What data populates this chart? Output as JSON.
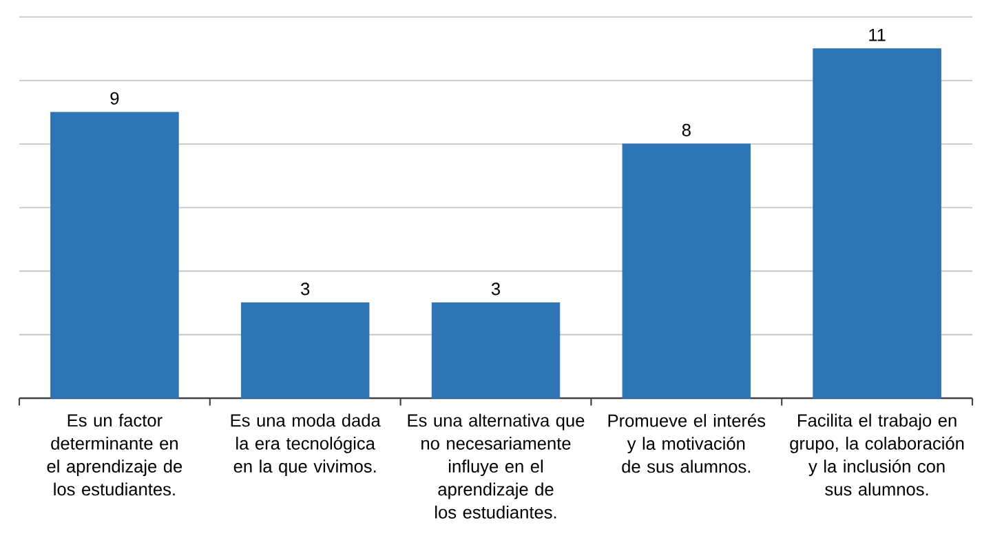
{
  "chart_data": {
    "type": "bar",
    "categories": [
      "Es un factor determinante en el aprendizaje de los estudiantes.",
      "Es una moda dada la era tecnológica en la que vivimos.",
      "Es una alternativa que no necesariamente influye en el aprendizaje de los estudiantes.",
      "Promueve el interés y la motivación de sus alumnos.",
      "Facilita el trabajo en grupo, la colaboración y la inclusión con sus alumnos."
    ],
    "values": [
      9,
      3,
      3,
      8,
      11
    ],
    "color": "#2e75b6",
    "grid": true,
    "tick_labels": "x",
    "data_labels": true
  }
}
